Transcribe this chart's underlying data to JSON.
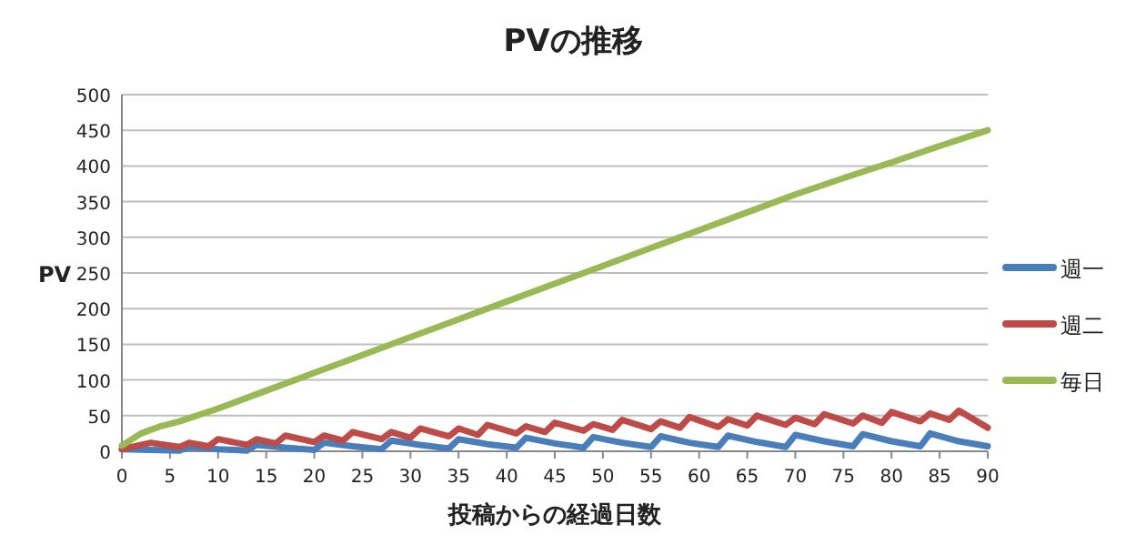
{
  "chart_data": {
    "type": "line",
    "title": "PVの推移",
    "xlabel": "投稿からの経過日数",
    "ylabel": "PV",
    "xlim": [
      0,
      90
    ],
    "xticks": [
      0,
      5,
      10,
      15,
      20,
      25,
      30,
      35,
      40,
      45,
      50,
      55,
      60,
      65,
      70,
      75,
      80,
      85,
      90
    ],
    "ylim": [
      0,
      500
    ],
    "yticks": [
      0,
      50,
      100,
      150,
      200,
      250,
      300,
      350,
      400,
      450,
      500
    ],
    "grid": "y",
    "legend": "right",
    "marker": "none",
    "line_style": "solid",
    "series": [
      {
        "name": "週一",
        "color": "#4a7ebb",
        "x": [
          0,
          6,
          7,
          10,
          13,
          14,
          17,
          20,
          21,
          24,
          27,
          28,
          31,
          34,
          35,
          38,
          41,
          42,
          45,
          48,
          49,
          52,
          55,
          56,
          59,
          62,
          63,
          66,
          69,
          70,
          73,
          76,
          77,
          80,
          83,
          84,
          87,
          90
        ],
        "values": [
          3,
          1,
          6,
          3,
          1,
          9,
          5,
          2,
          12,
          7,
          3,
          15,
          9,
          4,
          17,
          10,
          5,
          19,
          11,
          5,
          20,
          12,
          6,
          21,
          12,
          6,
          22,
          13,
          6,
          23,
          14,
          7,
          24,
          14,
          7,
          25,
          14,
          7
        ]
      },
      {
        "name": "週二",
        "color": "#be4b48",
        "x": [
          0,
          3,
          6,
          7,
          9,
          10,
          13,
          14,
          16,
          17,
          20,
          21,
          23,
          24,
          27,
          28,
          30,
          31,
          34,
          35,
          37,
          38,
          41,
          42,
          44,
          45,
          48,
          49,
          51,
          52,
          55,
          56,
          58,
          59,
          62,
          63,
          65,
          66,
          69,
          70,
          72,
          73,
          76,
          77,
          79,
          80,
          83,
          84,
          86,
          87,
          90
        ],
        "values": [
          3,
          12,
          6,
          12,
          7,
          17,
          9,
          17,
          11,
          22,
          13,
          22,
          15,
          27,
          17,
          27,
          19,
          32,
          21,
          32,
          23,
          37,
          25,
          35,
          27,
          40,
          29,
          38,
          30,
          44,
          31,
          42,
          33,
          48,
          34,
          45,
          36,
          50,
          37,
          47,
          38,
          52,
          39,
          50,
          40,
          55,
          42,
          53,
          44,
          57,
          33
        ]
      },
      {
        "name": "毎日",
        "color": "#98b954",
        "x": [
          0,
          2,
          4,
          6,
          10,
          15,
          20,
          25,
          30,
          35,
          40,
          45,
          50,
          55,
          60,
          65,
          70,
          75,
          80,
          85,
          90
        ],
        "values": [
          8,
          25,
          35,
          42,
          60,
          85,
          110,
          135,
          160,
          185,
          210,
          235,
          260,
          285,
          310,
          335,
          360,
          383,
          405,
          428,
          450
        ]
      }
    ]
  }
}
